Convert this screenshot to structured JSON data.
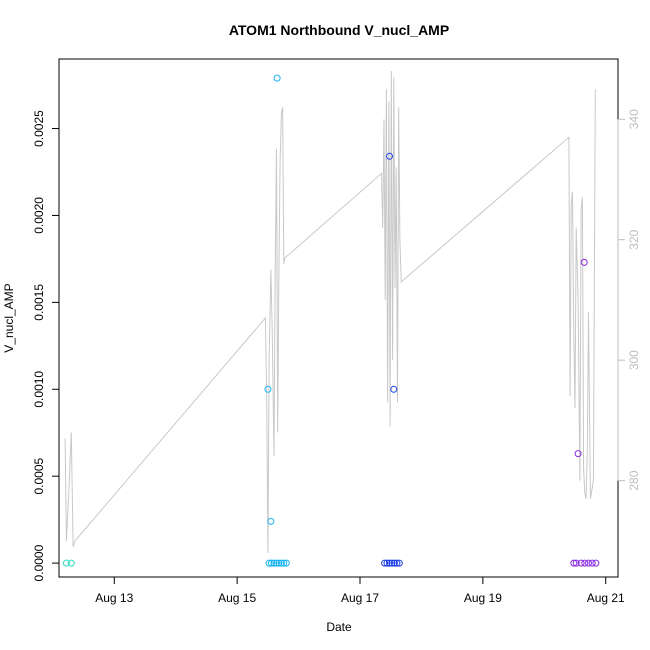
{
  "chart_data": {
    "type": "scatter",
    "title": "ATOM1 Northbound V_nucl_AMP",
    "xlabel": "Date",
    "ylabel": "V_nucl_AMP",
    "x_unit": "days in August",
    "xlim": [
      12.1,
      21.2
    ],
    "ylim": [
      -8e-05,
      0.0029
    ],
    "y2lim": [
      264,
      350
    ],
    "x_ticks": [
      {
        "value": 13,
        "label": "Aug 13"
      },
      {
        "value": 15,
        "label": "Aug 15"
      },
      {
        "value": 17,
        "label": "Aug 17"
      },
      {
        "value": 19,
        "label": "Aug 19"
      },
      {
        "value": 21,
        "label": "Aug 21"
      }
    ],
    "y_ticks": [
      {
        "value": 0,
        "label": "0.0000"
      },
      {
        "value": 0.0005,
        "label": "0.0005"
      },
      {
        "value": 0.001,
        "label": "0.0010"
      },
      {
        "value": 0.0015,
        "label": "0.0015"
      },
      {
        "value": 0.002,
        "label": "0.0020"
      },
      {
        "value": 0.0025,
        "label": "0.0025"
      }
    ],
    "y2_ticks": [
      {
        "value": 280,
        "label": "280"
      },
      {
        "value": 300,
        "label": "300"
      },
      {
        "value": 320,
        "label": "320"
      },
      {
        "value": 340,
        "label": "340"
      }
    ],
    "points": [
      {
        "x": 12.22,
        "y": 0,
        "color": "#2de0c0"
      },
      {
        "x": 12.3,
        "y": 0,
        "color": "#2de0c0"
      },
      {
        "x": 15.5,
        "y": 0.001,
        "color": "#1ab4f0"
      },
      {
        "x": 15.55,
        "y": 0.00024,
        "color": "#1ab4f0"
      },
      {
        "x": 15.65,
        "y": 0.00279,
        "color": "#1ab4f0"
      },
      {
        "x": 15.52,
        "y": 0,
        "color": "#1ab4f0"
      },
      {
        "x": 15.56,
        "y": 0,
        "color": "#1ab4f0"
      },
      {
        "x": 15.6,
        "y": 0,
        "color": "#1ab4f0"
      },
      {
        "x": 15.64,
        "y": 0,
        "color": "#1ab4f0"
      },
      {
        "x": 15.68,
        "y": 0,
        "color": "#1ab4f0"
      },
      {
        "x": 15.72,
        "y": 0,
        "color": "#1ab4f0"
      },
      {
        "x": 15.76,
        "y": 0,
        "color": "#1ab4f0"
      },
      {
        "x": 15.8,
        "y": 0,
        "color": "#1ab4f0"
      },
      {
        "x": 17.48,
        "y": 0.00234,
        "color": "#1f3fe8"
      },
      {
        "x": 17.55,
        "y": 0.001,
        "color": "#1f3fe8"
      },
      {
        "x": 17.4,
        "y": 0,
        "color": "#1f3fe8"
      },
      {
        "x": 17.44,
        "y": 0,
        "color": "#1f3fe8"
      },
      {
        "x": 17.48,
        "y": 0,
        "color": "#1f3fe8"
      },
      {
        "x": 17.52,
        "y": 0,
        "color": "#1f3fe8"
      },
      {
        "x": 17.56,
        "y": 0,
        "color": "#1f3fe8"
      },
      {
        "x": 17.6,
        "y": 0,
        "color": "#1f3fe8"
      },
      {
        "x": 17.64,
        "y": 0,
        "color": "#1f3fe8"
      },
      {
        "x": 20.55,
        "y": 0.00063,
        "color": "#8a2be2"
      },
      {
        "x": 20.65,
        "y": 0.00173,
        "color": "#8a2be2"
      },
      {
        "x": 20.48,
        "y": 0,
        "color": "#8a2be2"
      },
      {
        "x": 20.52,
        "y": 0,
        "color": "#8a2be2"
      },
      {
        "x": 20.6,
        "y": 0,
        "color": "#8a2be2"
      },
      {
        "x": 20.66,
        "y": 0,
        "color": "#8a2be2"
      },
      {
        "x": 20.72,
        "y": 0,
        "color": "#8a2be2"
      },
      {
        "x": 20.78,
        "y": 0,
        "color": "#8a2be2"
      },
      {
        "x": 20.84,
        "y": 0,
        "color": "#8a2be2"
      }
    ],
    "line": {
      "axis": "right",
      "color": "#c8c8c8",
      "x": [
        12.2,
        12.22,
        12.26,
        12.3,
        12.33,
        12.36,
        15.46,
        15.48,
        15.5,
        15.52,
        15.55,
        15.57,
        15.6,
        15.62,
        15.64,
        15.66,
        15.68,
        15.7,
        15.72,
        15.74,
        15.76,
        15.78,
        17.35,
        17.37,
        17.39,
        17.41,
        17.43,
        17.45,
        17.47,
        17.49,
        17.51,
        17.53,
        17.55,
        17.57,
        17.59,
        17.61,
        17.63,
        17.65,
        17.67,
        20.4,
        20.42,
        20.44,
        20.46,
        20.48,
        20.5,
        20.52,
        20.55,
        20.58,
        20.6,
        20.62,
        20.64,
        20.66,
        20.68,
        20.7,
        20.72,
        20.75,
        20.8,
        20.83
      ],
      "y": [
        287,
        270,
        278,
        288,
        269,
        270,
        307,
        295,
        268,
        300,
        315,
        305,
        284,
        315,
        335,
        288,
        315,
        333,
        341,
        342,
        316,
        317,
        331,
        322,
        340,
        310,
        345,
        293,
        343,
        289,
        348,
        300,
        347,
        312,
        332,
        293,
        342,
        320,
        313,
        337,
        294,
        326,
        328,
        304,
        292,
        322,
        310,
        280,
        325,
        327,
        282,
        278,
        277,
        285,
        308,
        277,
        280,
        345
      ]
    }
  }
}
